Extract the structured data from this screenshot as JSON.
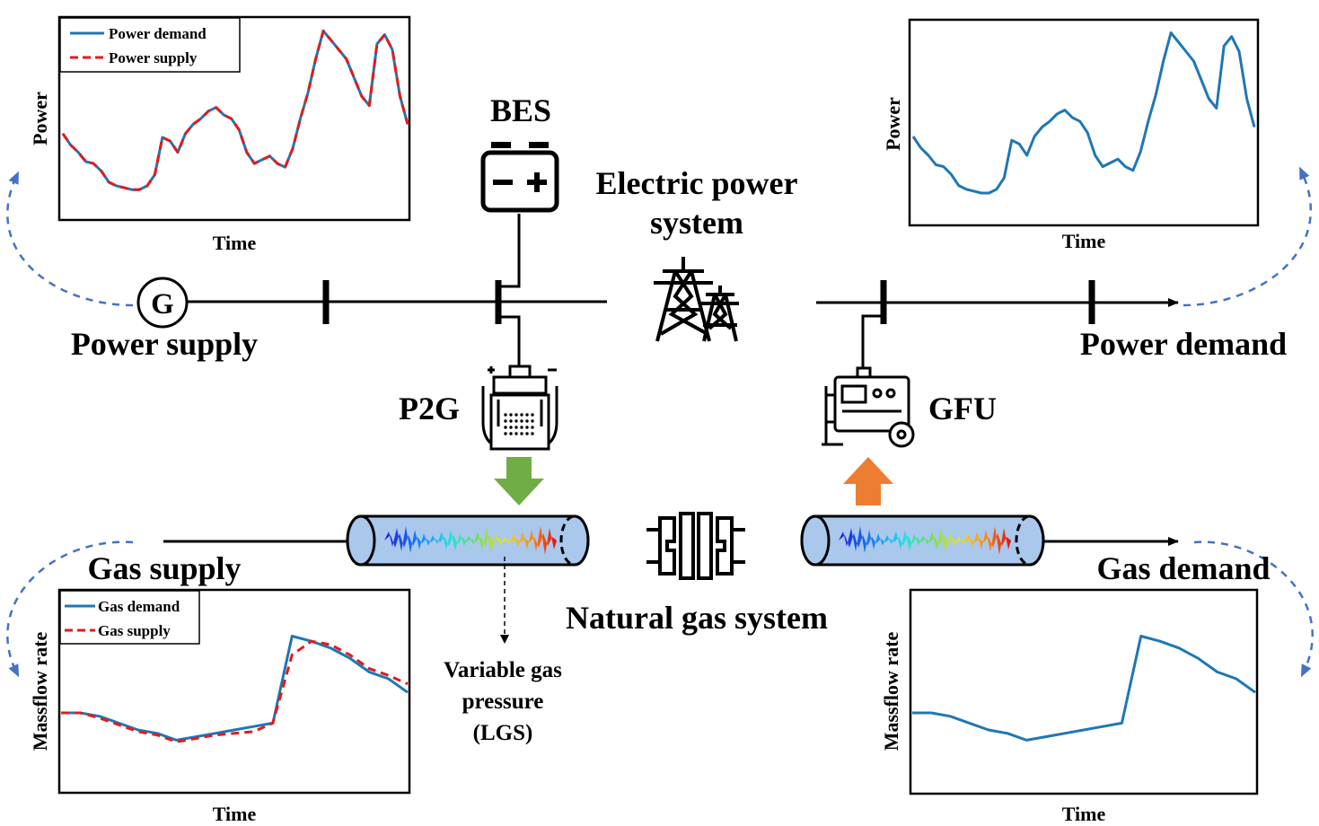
{
  "labels": {
    "bes": "BES",
    "eps_line1": "Electric power",
    "eps_line2": "system",
    "power_supply": "Power supply",
    "power_demand": "Power demand",
    "p2g": "P2G",
    "gfu": "GFU",
    "gas_supply": "Gas supply",
    "gas_demand": "Gas demand",
    "ngs": "Natural gas system",
    "vgp_line1": "Variable gas",
    "vgp_line2": "pressure",
    "vgp_line3": "(LGS)",
    "generator_symbol": "G"
  },
  "icons": {
    "battery": "battery-icon",
    "tower": "transmission-tower-icon",
    "p2g": "electrolyzer-icon",
    "gfu": "gas-generator-icon",
    "compressor": "gas-compressor-icon",
    "pipe": "pipeline-icon"
  },
  "colors": {
    "demand_line": "#1f77b4",
    "supply_line": "#e31a1c",
    "dashed_arrow": "#4472c4",
    "p2g_arrow": "#70ad47",
    "gfu_arrow": "#ed7d31",
    "pipe_fill": "#a9c8ec"
  },
  "chart_data": [
    {
      "id": "power-supply-chart",
      "type": "line",
      "xlabel": "Time",
      "ylabel": "Power",
      "legend_position": "top-left",
      "ylim": [
        0,
        1
      ],
      "series": [
        {
          "name": "Power demand",
          "style": "solid",
          "color": "#1f77b4",
          "values": [
            0.4,
            0.34,
            0.3,
            0.25,
            0.24,
            0.2,
            0.14,
            0.12,
            0.11,
            0.1,
            0.1,
            0.12,
            0.18,
            0.38,
            0.36,
            0.3,
            0.4,
            0.45,
            0.48,
            0.52,
            0.54,
            0.5,
            0.48,
            0.42,
            0.3,
            0.24,
            0.26,
            0.28,
            0.24,
            0.22,
            0.32,
            0.48,
            0.62,
            0.8,
            0.95,
            0.9,
            0.85,
            0.8,
            0.7,
            0.6,
            0.55,
            0.88,
            0.93,
            0.85,
            0.6,
            0.45
          ]
        },
        {
          "name": "Power supply",
          "style": "dashed",
          "color": "#e31a1c",
          "values": [
            0.4,
            0.34,
            0.3,
            0.25,
            0.24,
            0.2,
            0.14,
            0.12,
            0.11,
            0.1,
            0.1,
            0.12,
            0.18,
            0.38,
            0.36,
            0.3,
            0.4,
            0.45,
            0.48,
            0.52,
            0.54,
            0.5,
            0.48,
            0.42,
            0.3,
            0.24,
            0.26,
            0.28,
            0.24,
            0.22,
            0.32,
            0.48,
            0.62,
            0.8,
            0.95,
            0.9,
            0.85,
            0.8,
            0.7,
            0.6,
            0.55,
            0.88,
            0.93,
            0.85,
            0.6,
            0.45
          ]
        }
      ]
    },
    {
      "id": "power-demand-chart",
      "type": "line",
      "xlabel": "Time",
      "ylabel": "Power",
      "ylim": [
        0,
        1
      ],
      "series": [
        {
          "style": "solid",
          "color": "#1f77b4",
          "values": [
            0.4,
            0.34,
            0.3,
            0.25,
            0.24,
            0.2,
            0.14,
            0.12,
            0.11,
            0.1,
            0.1,
            0.12,
            0.18,
            0.38,
            0.36,
            0.3,
            0.4,
            0.45,
            0.48,
            0.52,
            0.54,
            0.5,
            0.48,
            0.42,
            0.3,
            0.24,
            0.26,
            0.28,
            0.24,
            0.22,
            0.32,
            0.48,
            0.62,
            0.8,
            0.95,
            0.9,
            0.85,
            0.8,
            0.7,
            0.6,
            0.55,
            0.88,
            0.93,
            0.85,
            0.6,
            0.45
          ]
        }
      ]
    },
    {
      "id": "gas-supply-chart",
      "type": "line",
      "xlabel": "Time",
      "ylabel": "Massflow rate",
      "legend_position": "top-left",
      "ylim": [
        0,
        1
      ],
      "series": [
        {
          "name": "Gas demand",
          "style": "solid",
          "color": "#1f77b4",
          "values": [
            0.4,
            0.4,
            0.38,
            0.34,
            0.3,
            0.28,
            0.24,
            0.26,
            0.28,
            0.3,
            0.32,
            0.34,
            0.85,
            0.82,
            0.78,
            0.72,
            0.64,
            0.6,
            0.52
          ]
        },
        {
          "name": "Gas supply",
          "style": "dashed",
          "color": "#e31a1c",
          "values": [
            0.4,
            0.4,
            0.37,
            0.33,
            0.29,
            0.27,
            0.23,
            0.25,
            0.27,
            0.28,
            0.29,
            0.34,
            0.74,
            0.82,
            0.8,
            0.74,
            0.66,
            0.62,
            0.57
          ]
        }
      ]
    },
    {
      "id": "gas-demand-chart",
      "type": "line",
      "xlabel": "Time",
      "ylabel": "Massflow rate",
      "ylim": [
        0,
        1
      ],
      "series": [
        {
          "style": "solid",
          "color": "#1f77b4",
          "values": [
            0.4,
            0.4,
            0.38,
            0.34,
            0.3,
            0.28,
            0.24,
            0.26,
            0.28,
            0.3,
            0.32,
            0.34,
            0.85,
            0.82,
            0.78,
            0.72,
            0.64,
            0.6,
            0.52
          ]
        }
      ]
    }
  ]
}
